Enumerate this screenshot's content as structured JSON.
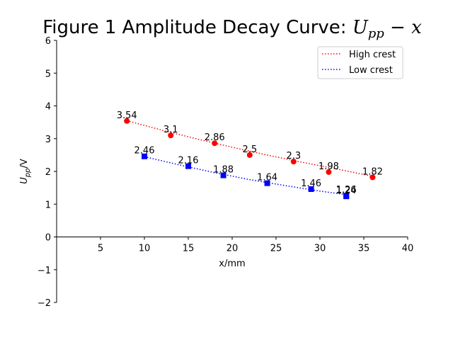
{
  "chart_data": {
    "type": "scatter",
    "title": "Figure 1  Amplitude Decay Curve: ",
    "title_math_base": "U",
    "title_math_sub": "pp",
    "title_math_tail": " − x",
    "xlabel": "x/mm",
    "ylabel_base": "U",
    "ylabel_sub": "pp",
    "ylabel_tail": "/V",
    "xlim": [
      0,
      40
    ],
    "ylim": [
      -2,
      6
    ],
    "xticks": [
      5,
      10,
      15,
      20,
      25,
      30,
      35,
      40
    ],
    "yticks": [
      -2,
      -1,
      0,
      1,
      2,
      3,
      4,
      5,
      6
    ],
    "grid": false,
    "legend_position": "top-right",
    "series": [
      {
        "name": "High crest",
        "color": "#ff0000",
        "marker": "circle",
        "line_style": "dotted",
        "x": [
          8,
          13,
          18,
          22,
          27,
          31,
          36
        ],
        "y": [
          3.54,
          3.1,
          2.86,
          2.5,
          2.3,
          1.98,
          1.82
        ],
        "labels": [
          "3.54",
          "3.1",
          "2.86",
          "2.5",
          "2.3",
          "1.98",
          "1.82"
        ],
        "fit_x": [
          8,
          12,
          16,
          20,
          24,
          28,
          32,
          36
        ],
        "fit_y": [
          3.55,
          3.26,
          2.99,
          2.74,
          2.5,
          2.28,
          2.07,
          1.85
        ]
      },
      {
        "name": "Low crest",
        "color": "#0000ff",
        "marker": "square",
        "line_style": "dotted",
        "x": [
          10,
          15,
          19,
          24,
          29,
          33,
          33
        ],
        "y": [
          2.46,
          2.16,
          1.88,
          1.64,
          1.46,
          1.26,
          1.24
        ],
        "labels": [
          "2.46",
          "2.16",
          "1.88",
          "1.64",
          "1.46",
          "1.26",
          "1.24"
        ],
        "fit_x": [
          10,
          14,
          18,
          22,
          26,
          30,
          33
        ],
        "fit_y": [
          2.45,
          2.2,
          1.96,
          1.75,
          1.57,
          1.4,
          1.29
        ]
      }
    ]
  }
}
